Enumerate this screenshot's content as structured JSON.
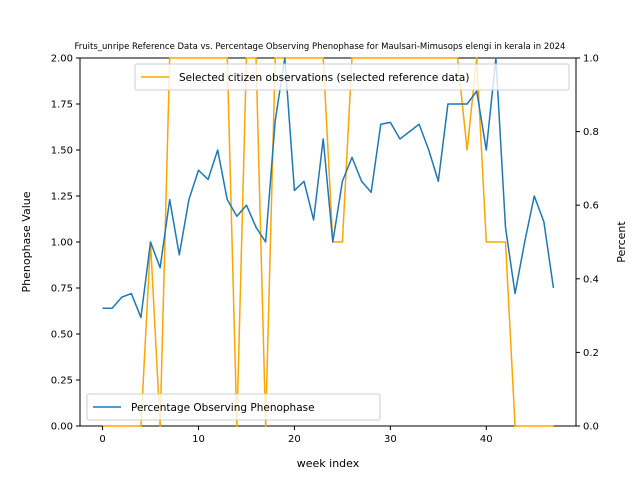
{
  "chart_data": {
    "type": "line",
    "title": "Fruits_unripe Reference Data vs. Percentage Observing Phenophase for Maulsari-Mimusops elengi in kerala in 2024",
    "xlabel": "week index",
    "ylabel_left": "Phenophase Value",
    "ylabel_right": "Percent",
    "xlim": [
      -2.35,
      49.35
    ],
    "ylim_left": [
      0,
      2.0
    ],
    "ylim_right": [
      0,
      1.0
    ],
    "x_ticks": [
      0,
      10,
      20,
      30,
      40
    ],
    "y_ticks_left": [
      "0.00",
      "0.25",
      "0.50",
      "0.75",
      "1.00",
      "1.25",
      "1.50",
      "1.75",
      "2.00"
    ],
    "y_ticks_right": [
      "0.0",
      "0.2",
      "0.4",
      "0.6",
      "0.8",
      "1.0"
    ],
    "grid": false,
    "series": [
      {
        "name": "Selected citizen observations (selected reference data)",
        "axis": "left",
        "color": "#ffa500",
        "legend": "upper-right",
        "x": [
          0,
          1,
          2,
          3,
          4,
          5,
          6,
          7,
          8,
          9,
          10,
          11,
          12,
          13,
          14,
          15,
          16,
          17,
          18,
          19,
          20,
          21,
          22,
          23,
          24,
          25,
          26,
          27,
          28,
          29,
          30,
          31,
          32,
          33,
          34,
          35,
          36,
          37,
          38,
          39,
          40,
          41,
          42,
          43,
          44,
          45,
          46,
          47
        ],
        "values": [
          0,
          0,
          0,
          0,
          0,
          1,
          0,
          2,
          2,
          2,
          2,
          2,
          2,
          2,
          0,
          2,
          2,
          0,
          2,
          2,
          2,
          2,
          2,
          2,
          1,
          1,
          2,
          2,
          2,
          2,
          2,
          2,
          2,
          2,
          2,
          2,
          2,
          2,
          1.5,
          2,
          1,
          1,
          1,
          0,
          0,
          0,
          0,
          0
        ]
      },
      {
        "name": "Percentage Observing Phenophase",
        "axis": "right",
        "color": "#1f77b4",
        "legend": "lower-left",
        "x": [
          0,
          1,
          2,
          3,
          4,
          5,
          6,
          7,
          8,
          9,
          10,
          11,
          12,
          13,
          14,
          15,
          16,
          17,
          18,
          19,
          20,
          21,
          22,
          23,
          24,
          25,
          26,
          27,
          28,
          29,
          30,
          31,
          32,
          33,
          34,
          35,
          36,
          37,
          38,
          39,
          40,
          41,
          42,
          43,
          44,
          45,
          46,
          47
        ],
        "values": [
          0.32,
          0.32,
          0.35,
          0.36,
          0.295,
          0.5,
          0.43,
          0.615,
          0.465,
          0.615,
          0.695,
          0.67,
          0.75,
          0.615,
          0.57,
          0.6,
          0.54,
          0.5,
          0.83,
          1.0,
          0.64,
          0.665,
          0.56,
          0.78,
          0.5,
          0.665,
          0.73,
          0.665,
          0.635,
          0.82,
          0.825,
          0.78,
          0.8,
          0.82,
          0.75,
          0.665,
          0.875,
          0.875,
          0.875,
          0.91,
          0.75,
          1.0,
          0.54,
          0.36,
          0.5,
          0.625,
          0.555,
          0.375
        ]
      }
    ]
  }
}
